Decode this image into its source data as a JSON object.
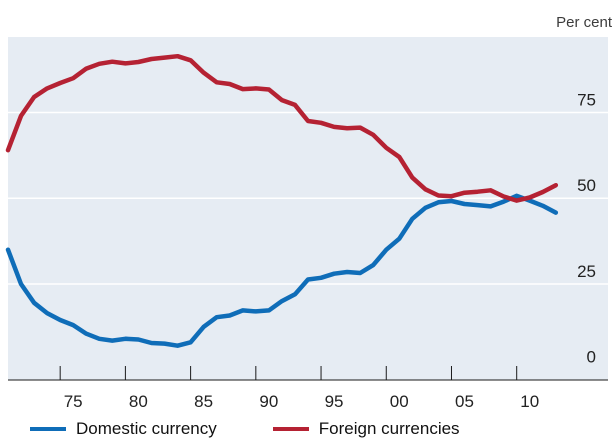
{
  "chart_data": {
    "type": "line",
    "unit_label": "Per cent",
    "x_tick_labels": [
      "75",
      "80",
      "85",
      "90",
      "95",
      "00",
      "05",
      "10"
    ],
    "x_ticks": [
      1974,
      1979,
      1984,
      1989,
      1994,
      1999,
      2004,
      2009
    ],
    "y_ticks": [
      0,
      25,
      50,
      75
    ],
    "y_tick_labels": [
      "0",
      "25",
      "50",
      "75"
    ],
    "xlim": [
      1970,
      2016
    ],
    "ylim": [
      -3,
      97
    ],
    "grid": "horizontal",
    "legend_position": "bottom",
    "x": [
      1970,
      1971,
      1972,
      1973,
      1974,
      1975,
      1976,
      1977,
      1978,
      1979,
      1980,
      1981,
      1982,
      1983,
      1984,
      1985,
      1986,
      1987,
      1988,
      1989,
      1990,
      1991,
      1992,
      1993,
      1994,
      1995,
      1996,
      1997,
      1998,
      1999,
      2000,
      2001,
      2002,
      2003,
      2004,
      2005,
      2006,
      2007,
      2008,
      2009,
      2010,
      2011,
      2012
    ],
    "series": [
      {
        "name": "Domestic currency",
        "color": "#0f6db8",
        "values": [
          35,
          25,
          19.5,
          16.5,
          14.5,
          13,
          10.5,
          9,
          8.5,
          9,
          8.8,
          7.8,
          7.6,
          7,
          8,
          12.5,
          15.3,
          15.8,
          17.3,
          17,
          17.3,
          20,
          22,
          26.3,
          26.8,
          28,
          28.5,
          28.2,
          30.5,
          35,
          38.2,
          44,
          47.2,
          48.8,
          49.2,
          48.3,
          48,
          47.6,
          49,
          50.7,
          49.3,
          47.8,
          45.8
        ]
      },
      {
        "name": "Foreign currencies",
        "color": "#b52233",
        "values": [
          64,
          74,
          79.5,
          82,
          83.6,
          85,
          87.8,
          89.2,
          89.8,
          89.3,
          89.7,
          90.6,
          91,
          91.4,
          90.2,
          86.6,
          83.8,
          83.3,
          81.8,
          82,
          81.7,
          78.6,
          77.2,
          72.5,
          72,
          70.8,
          70.4,
          70.6,
          68.5,
          64.7,
          62,
          56,
          52.6,
          50.8,
          50.6,
          51.6,
          51.9,
          52.3,
          50.5,
          49.3,
          50.2,
          51.8,
          53.8
        ]
      }
    ]
  }
}
